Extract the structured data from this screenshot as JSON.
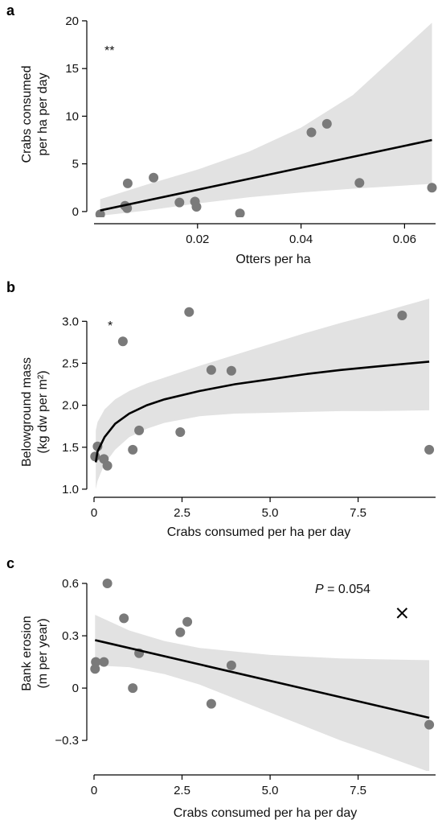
{
  "chart_data": [
    {
      "type": "scatter",
      "panel": "a",
      "xlabel": "Otters per ha",
      "ylabel_lines": [
        "Crabs consumed",
        "per ha per day"
      ],
      "xlim": [
        0,
        0.066
      ],
      "ylim": [
        -0.6,
        20.5
      ],
      "xticks": [
        0.02,
        0.04,
        0.06
      ],
      "xtick_labels": [
        "0.02",
        "0.04",
        "0.06"
      ],
      "yticks": [
        0,
        5,
        10,
        15,
        20
      ],
      "ytick_labels": [
        "0",
        "5",
        "10",
        "15",
        "20"
      ],
      "annotation": "**",
      "points": [
        {
          "x": 0.0012,
          "y": -0.3
        },
        {
          "x": 0.006,
          "y": 0.6
        },
        {
          "x": 0.0064,
          "y": 0.35
        },
        {
          "x": 0.0065,
          "y": 2.95
        },
        {
          "x": 0.0115,
          "y": 3.55
        },
        {
          "x": 0.0165,
          "y": 0.95
        },
        {
          "x": 0.0195,
          "y": 1.05
        },
        {
          "x": 0.0198,
          "y": 0.5
        },
        {
          "x": 0.0282,
          "y": -0.2
        },
        {
          "x": 0.042,
          "y": 8.3
        },
        {
          "x": 0.045,
          "y": 9.2
        },
        {
          "x": 0.0513,
          "y": 3.0
        },
        {
          "x": 0.0653,
          "y": 2.5
        }
      ],
      "fit": {
        "x": [
          0.0012,
          0.0653
        ],
        "y": [
          0.12,
          7.5
        ]
      },
      "ci_upper": {
        "x": [
          0.0012,
          0.01,
          0.02,
          0.03,
          0.04,
          0.05,
          0.0653
        ],
        "y": [
          1.3,
          2.8,
          4.4,
          6.3,
          8.8,
          12.2,
          19.8
        ]
      },
      "ci_lower": {
        "x": [
          0.0012,
          0.01,
          0.02,
          0.03,
          0.04,
          0.05,
          0.0653
        ],
        "y": [
          -0.45,
          0.1,
          0.85,
          1.5,
          2.0,
          2.4,
          2.9
        ]
      }
    },
    {
      "type": "scatter",
      "panel": "b",
      "xlabel": "Crabs consumed per ha per day",
      "ylabel_lines": [
        "Belowground mass",
        "(kg dw per m²)"
      ],
      "xlim": [
        0,
        9.7
      ],
      "ylim": [
        0.98,
        3.3
      ],
      "xticks": [
        0,
        2.5,
        5.0,
        7.5
      ],
      "xtick_labels": [
        "0",
        "2.5",
        "5.0",
        "7.5"
      ],
      "yticks": [
        1.0,
        1.5,
        2.0,
        2.5,
        3.0
      ],
      "ytick_labels": [
        "1.0",
        "1.5",
        "2.0",
        "2.5",
        "3.0"
      ],
      "annotation": "*",
      "points": [
        {
          "x": 0.03,
          "y": 1.39
        },
        {
          "x": 0.1,
          "y": 1.51
        },
        {
          "x": 0.28,
          "y": 1.36
        },
        {
          "x": 0.38,
          "y": 1.28
        },
        {
          "x": 0.82,
          "y": 2.76
        },
        {
          "x": 1.1,
          "y": 1.47
        },
        {
          "x": 1.28,
          "y": 1.7
        },
        {
          "x": 2.45,
          "y": 1.68
        },
        {
          "x": 2.7,
          "y": 3.11
        },
        {
          "x": 3.33,
          "y": 2.42
        },
        {
          "x": 3.9,
          "y": 2.41
        },
        {
          "x": 8.75,
          "y": 3.07
        },
        {
          "x": 9.52,
          "y": 1.47
        }
      ],
      "fit": {
        "x": [
          0.05,
          0.1,
          0.3,
          0.6,
          1.0,
          1.5,
          2.0,
          3.0,
          4.0,
          5.0,
          6.0,
          7.0,
          8.0,
          9.52
        ],
        "y": [
          1.32,
          1.45,
          1.62,
          1.78,
          1.9,
          2.0,
          2.07,
          2.17,
          2.25,
          2.31,
          2.37,
          2.42,
          2.46,
          2.52
        ]
      },
      "ci_upper": {
        "x": [
          0.05,
          0.1,
          0.3,
          0.6,
          1.0,
          1.5,
          2.0,
          3.0,
          4.0,
          5.0,
          6.0,
          7.0,
          8.0,
          9.52
        ],
        "y": [
          1.7,
          1.8,
          1.95,
          2.07,
          2.17,
          2.26,
          2.33,
          2.47,
          2.6,
          2.73,
          2.86,
          2.98,
          3.09,
          3.27
        ]
      },
      "ci_lower": {
        "x": [
          0.05,
          0.1,
          0.3,
          0.6,
          1.0,
          1.5,
          2.0,
          3.0,
          4.0,
          5.0,
          6.0,
          7.0,
          8.0,
          9.52
        ],
        "y": [
          1.0,
          1.1,
          1.3,
          1.47,
          1.62,
          1.72,
          1.79,
          1.87,
          1.9,
          1.91,
          1.92,
          1.93,
          1.93,
          1.94
        ]
      }
    },
    {
      "type": "scatter",
      "panel": "c",
      "xlabel": "Crabs consumed per ha per day",
      "ylabel_lines": [
        "Bank erosion",
        "(m per year)"
      ],
      "xlim": [
        0,
        9.7
      ],
      "ylim": [
        -0.47,
        0.66
      ],
      "xticks": [
        0,
        2.5,
        5.0,
        7.5
      ],
      "xtick_labels": [
        "0",
        "2.5",
        "5.0",
        "7.5"
      ],
      "yticks": [
        -0.3,
        0,
        0.3,
        0.6
      ],
      "ytick_labels": [
        "−0.3",
        "0",
        "0.3",
        "0.6"
      ],
      "annotation_italic": "P",
      "annotation_rest": " = 0.054",
      "cross_marker": {
        "x": 8.75,
        "y": 0.43
      },
      "points": [
        {
          "x": 0.03,
          "y": 0.11
        },
        {
          "x": 0.05,
          "y": 0.15
        },
        {
          "x": 0.28,
          "y": 0.15
        },
        {
          "x": 0.38,
          "y": 0.6
        },
        {
          "x": 0.85,
          "y": 0.4
        },
        {
          "x": 1.1,
          "y": 0.0
        },
        {
          "x": 1.28,
          "y": 0.2
        },
        {
          "x": 2.45,
          "y": 0.32
        },
        {
          "x": 2.65,
          "y": 0.38
        },
        {
          "x": 3.33,
          "y": -0.09
        },
        {
          "x": 3.9,
          "y": 0.13
        },
        {
          "x": 9.52,
          "y": -0.21
        }
      ],
      "fit": {
        "x": [
          0.03,
          9.52
        ],
        "y": [
          0.275,
          -0.17
        ]
      },
      "ci_upper": {
        "x": [
          0.03,
          1.0,
          2.0,
          3.0,
          4.0,
          5.0,
          6.0,
          7.0,
          8.0,
          9.52
        ],
        "y": [
          0.42,
          0.33,
          0.27,
          0.23,
          0.21,
          0.19,
          0.18,
          0.17,
          0.165,
          0.16
        ]
      },
      "ci_lower": {
        "x": [
          0.03,
          1.0,
          2.0,
          3.0,
          4.0,
          5.0,
          6.0,
          7.0,
          8.0,
          9.52
        ],
        "y": [
          0.13,
          0.12,
          0.08,
          0.02,
          -0.06,
          -0.14,
          -0.22,
          -0.3,
          -0.37,
          -0.48
        ]
      }
    }
  ]
}
